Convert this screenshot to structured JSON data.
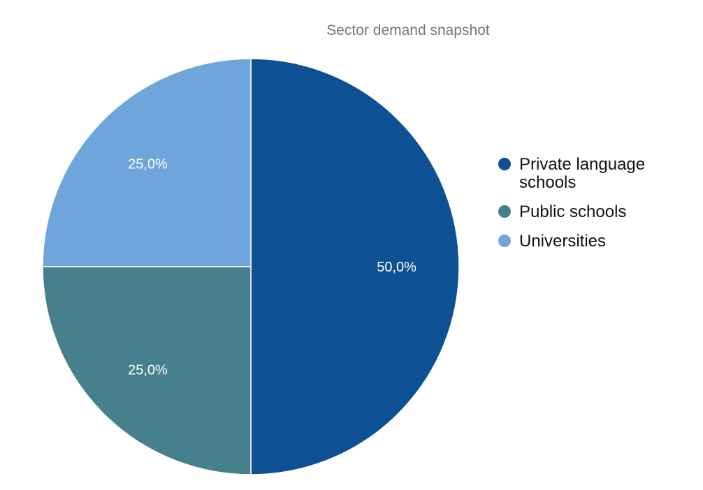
{
  "chart_data": {
    "type": "pie",
    "title": "Sector demand snapshot",
    "categories": [
      "Private language schools",
      "Public schools",
      "Universities"
    ],
    "values": [
      50.0,
      25.0,
      25.0
    ],
    "value_labels": [
      "50,0%",
      "25,0%",
      "25,0%"
    ],
    "colors": [
      "#0d5194",
      "#46808c",
      "#6ea6dc"
    ],
    "legend": {
      "position": "right",
      "entries": [
        "Private language schools",
        "Public schools",
        "Universities"
      ]
    }
  }
}
